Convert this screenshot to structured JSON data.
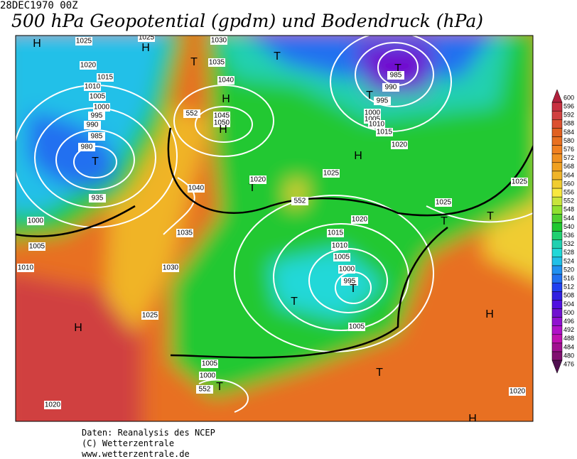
{
  "header": {
    "date": "28DEC1970 00Z",
    "title": "500 hPa Geopotential (gpdm) und Bodendruck (hPa)"
  },
  "colorbar": {
    "ticks": [
      600,
      596,
      592,
      588,
      584,
      580,
      576,
      572,
      568,
      564,
      560,
      556,
      552,
      548,
      544,
      540,
      536,
      532,
      528,
      524,
      520,
      516,
      512,
      508,
      504,
      500,
      496,
      492,
      488,
      484,
      480,
      476
    ],
    "colors": [
      "#b0203c",
      "#c83040",
      "#d04040",
      "#dc5030",
      "#e06020",
      "#e87020",
      "#f08020",
      "#f09020",
      "#f0a020",
      "#f0b428",
      "#f0cc30",
      "#f8e840",
      "#c8e43c",
      "#90e030",
      "#50d030",
      "#20c830",
      "#20d070",
      "#20d0b0",
      "#20d8d8",
      "#20c0e8",
      "#2090f0",
      "#2070f0",
      "#2040f0",
      "#3020e0",
      "#5010e0",
      "#7010d0",
      "#9010d0",
      "#b010c8",
      "#c010b0",
      "#a01090",
      "#801070",
      "#501050"
    ]
  },
  "map": {
    "labels": [
      "H",
      "1025",
      "1020",
      "1015",
      "1010",
      "1005",
      "1000",
      "995",
      "990",
      "985",
      "980",
      "T",
      "935",
      "1000",
      "1005",
      "1010",
      "1025",
      "H",
      "1030",
      "T",
      "1035",
      "1040",
      "H",
      "1045",
      "1050",
      "H",
      "552",
      "1040",
      "T",
      "1020",
      "552",
      "1035",
      "1030",
      "1025",
      "H",
      "1020",
      "T",
      "T",
      "985",
      "990",
      "T",
      "995",
      "1000",
      "1005",
      "1010",
      "1015",
      "1020",
      "H",
      "1025",
      "1020",
      "1015",
      "1010",
      "1005",
      "1000",
      "995",
      "T",
      "T",
      "1005",
      "H",
      "T",
      "1005",
      "1000",
      "552",
      "T",
      "1020",
      "H",
      "1025",
      "T",
      "T",
      "1025"
    ]
  },
  "footer": {
    "lines": [
      "Daten: Reanalysis des NCEP",
      "(C) Wetterzentrale",
      "www.wetterzentrale.de"
    ]
  }
}
